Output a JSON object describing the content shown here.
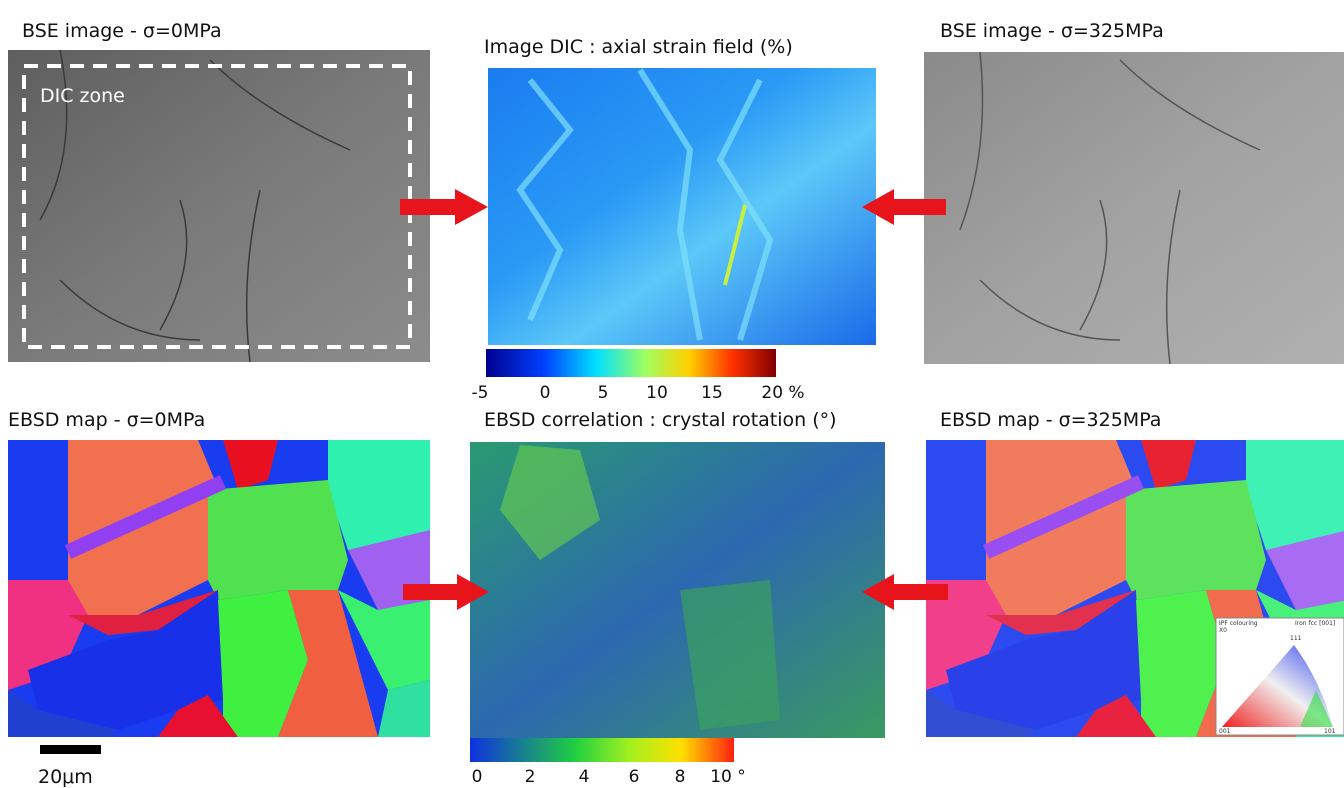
{
  "top_left": {
    "title": "BSE image - σ=0MPa",
    "zone_label": "DIC zone"
  },
  "top_center": {
    "title": "Image DIC : axial strain field (%)",
    "colorbar_ticks": [
      "-5",
      "0",
      "5",
      "10",
      "15",
      "20 %"
    ]
  },
  "top_right": {
    "title": "BSE image - σ=325MPa"
  },
  "bottom_left": {
    "title": "EBSD map - σ=0MPa",
    "scale_bar": "20μm"
  },
  "bottom_center": {
    "title": "EBSD correlation : crystal rotation (°)",
    "colorbar_ticks": [
      "0",
      "2",
      "4",
      "6",
      "8",
      "10 °"
    ]
  },
  "bottom_right": {
    "title": "EBSD map - σ=325MPa",
    "ipf_legend": {
      "title": "IPF colouring",
      "axis": "X0",
      "subtitle": "Iron fcc [001]",
      "top": "111",
      "left": "001",
      "right": "101"
    }
  }
}
